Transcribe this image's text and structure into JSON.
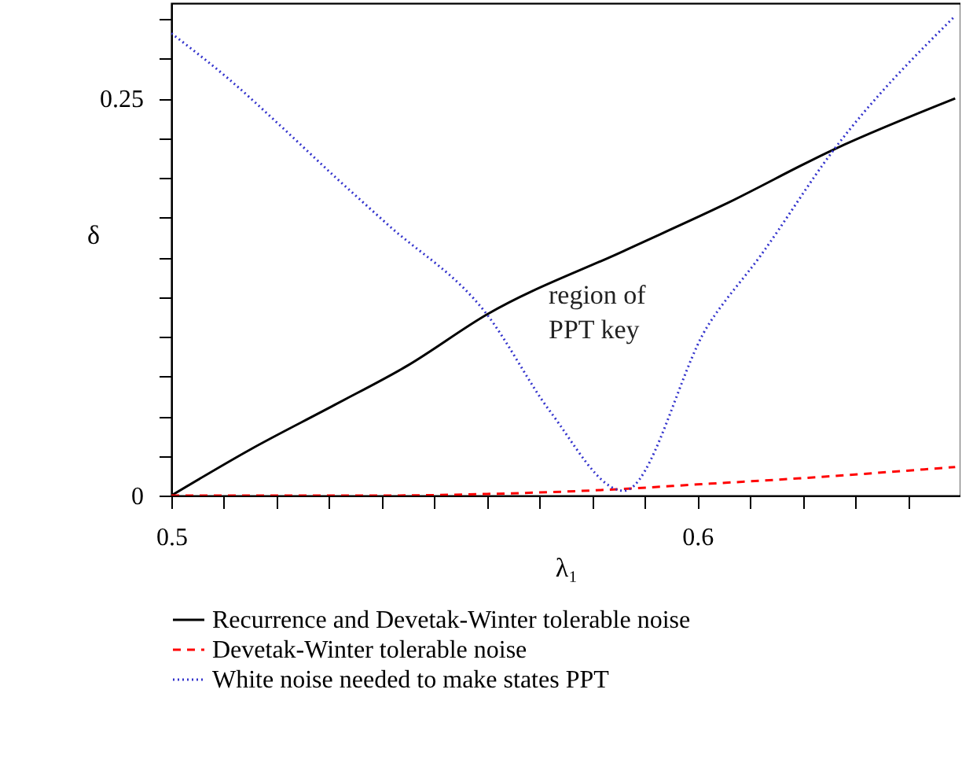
{
  "chart_data": {
    "type": "line",
    "xlabel": "λ₁",
    "ylabel": "δ",
    "xlim": [
      0.5,
      0.65
    ],
    "ylim": [
      0,
      0.31
    ],
    "xticks": [
      0.5,
      {
        "value": 0.51,
        "label": null
      },
      {
        "value": 0.52,
        "label": null
      },
      {
        "value": 0.53,
        "label": null
      },
      {
        "value": 0.54,
        "label": null
      },
      {
        "value": 0.55,
        "label": null
      },
      {
        "value": 0.56,
        "label": null
      },
      {
        "value": 0.57,
        "label": null
      },
      {
        "value": 0.58,
        "label": null
      },
      {
        "value": 0.59,
        "label": null
      },
      0.6,
      {
        "value": 0.61,
        "label": null
      },
      {
        "value": 0.62,
        "label": null
      },
      {
        "value": 0.63,
        "label": null
      },
      {
        "value": 0.64,
        "label": null
      }
    ],
    "yticks": [
      0,
      {
        "value": 0.025,
        "label": null
      },
      {
        "value": 0.05,
        "label": null
      },
      {
        "value": 0.075,
        "label": null
      },
      {
        "value": 0.1,
        "label": null
      },
      {
        "value": 0.125,
        "label": null
      },
      {
        "value": 0.15,
        "label": null
      },
      {
        "value": 0.175,
        "label": null
      },
      {
        "value": 0.2,
        "label": null
      },
      {
        "value": 0.225,
        "label": null
      },
      0.25,
      {
        "value": 0.275,
        "label": null
      },
      {
        "value": 0.3,
        "label": null
      }
    ],
    "grid": false,
    "legend": "bottom",
    "series": [
      {
        "name": "Recurrence and Devetak-Winter tolerable noise",
        "color": "#000000",
        "line_style": "solid",
        "x": [
          0.5,
          0.515,
          0.531,
          0.545,
          0.56,
          0.586,
          0.605,
          0.626,
          0.649
        ],
        "values": [
          0,
          0.029,
          0.057,
          0.082,
          0.114,
          0.154,
          0.183,
          0.218,
          0.25
        ]
      },
      {
        "name": "Devetak-Winter tolerable noise",
        "color": "#ff0000",
        "line_style": "dashed",
        "x": [
          0.5,
          0.52,
          0.54,
          0.56,
          0.585,
          0.6,
          0.62,
          0.649
        ],
        "values": [
          0,
          0,
          0,
          0.001,
          0.004,
          0.007,
          0.011,
          0.018
        ]
      },
      {
        "name": "White noise needed to make states PPT",
        "color": "#3333cc",
        "line_style": "dotted",
        "x": [
          0.5,
          0.511,
          0.521,
          0.531,
          0.541,
          0.56,
          0.572,
          0.586,
          0.602,
          0.612,
          0.626,
          0.649
        ],
        "values": [
          0.291,
          0.262,
          0.232,
          0.201,
          0.171,
          0.114,
          0.053,
          0.003,
          0.107,
          0.151,
          0.218,
          0.302
        ]
      }
    ],
    "annotations": [
      "region of\nPPT key"
    ]
  }
}
